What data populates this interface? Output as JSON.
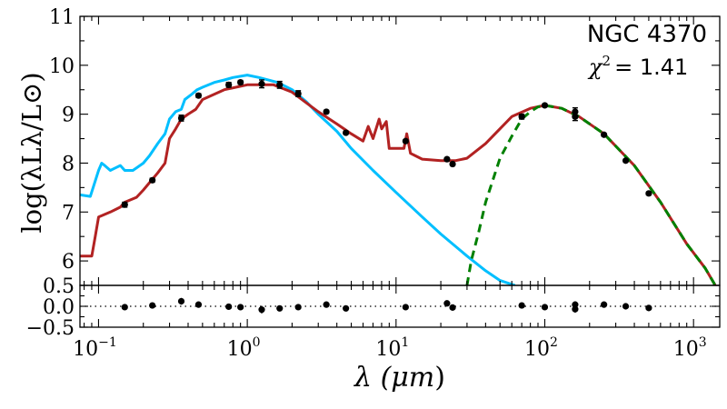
{
  "chart_data": [
    {
      "type": "line",
      "panel": "main",
      "annotation": "NGC 4370",
      "chi2_label": "χ",
      "chi2_exp": "2",
      "chi2_eq": "= 1.41",
      "xlabel_parts": [
        "λ (",
        "μm",
        ")"
      ],
      "ylabel": "log(λLλ/L⊙)",
      "xscale": "log",
      "xlim": [
        0.075,
        1500
      ],
      "ylim": [
        5.5,
        11
      ],
      "y_ticks": [
        {
          "v": 6,
          "t": "6"
        },
        {
          "v": 7,
          "t": "7"
        },
        {
          "v": 8,
          "t": "8"
        },
        {
          "v": 9,
          "t": "9"
        },
        {
          "v": 10,
          "t": "10"
        },
        {
          "v": 11,
          "t": "11"
        }
      ],
      "x_ticks": [
        {
          "v": 0.1,
          "base": "10",
          "exp": "−1"
        },
        {
          "v": 1,
          "base": "10",
          "exp": "0"
        },
        {
          "v": 10,
          "base": "10",
          "exp": "1"
        },
        {
          "v": 100,
          "base": "10",
          "exp": "2"
        },
        {
          "v": 1000,
          "base": "10",
          "exp": "3"
        }
      ],
      "series": [
        {
          "color": "#00BFFF",
          "style": "solid",
          "x": [
            0.075,
            0.088,
            0.1,
            0.105,
            0.11,
            0.12,
            0.14,
            0.15,
            0.17,
            0.18,
            0.2,
            0.22,
            0.25,
            0.28,
            0.3,
            0.33,
            0.36,
            0.38,
            0.42,
            0.46,
            0.5,
            0.6,
            0.7,
            0.8,
            1.0,
            1.2,
            1.6,
            2.0,
            2.5,
            3.0,
            4.0,
            5.0,
            7.0,
            10,
            15,
            20,
            30,
            40,
            50,
            63
          ],
          "y": [
            7.35,
            7.32,
            7.85,
            8.0,
            7.95,
            7.85,
            7.95,
            7.85,
            7.85,
            7.9,
            8.0,
            8.15,
            8.4,
            8.6,
            8.9,
            9.05,
            9.1,
            9.3,
            9.4,
            9.5,
            9.55,
            9.65,
            9.7,
            9.75,
            9.8,
            9.75,
            9.65,
            9.5,
            9.25,
            9.0,
            8.65,
            8.3,
            7.85,
            7.4,
            6.9,
            6.55,
            6.1,
            5.8,
            5.6,
            5.5
          ]
        },
        {
          "color": "#B22222",
          "style": "solid",
          "x": [
            0.075,
            0.09,
            0.095,
            0.1,
            0.12,
            0.14,
            0.15,
            0.18,
            0.2,
            0.22,
            0.25,
            0.28,
            0.3,
            0.33,
            0.36,
            0.4,
            0.45,
            0.5,
            0.7,
            1.0,
            1.5,
            2.0,
            3.0,
            4.0,
            5.0,
            6.0,
            6.5,
            7.0,
            7.7,
            8.0,
            8.6,
            9.0,
            11.3,
            11.8,
            12.5,
            13.5,
            15,
            20,
            25,
            30,
            40,
            60,
            80,
            100,
            130,
            170,
            250,
            400,
            600,
            900,
            1200,
            1400
          ],
          "y": [
            6.1,
            6.1,
            6.5,
            6.9,
            7.0,
            7.1,
            7.2,
            7.3,
            7.45,
            7.6,
            7.8,
            8.0,
            8.5,
            8.7,
            8.9,
            9.0,
            9.1,
            9.3,
            9.5,
            9.6,
            9.6,
            9.45,
            9.05,
            8.8,
            8.6,
            8.45,
            8.75,
            8.5,
            8.9,
            8.7,
            8.85,
            8.3,
            8.3,
            8.6,
            8.2,
            8.15,
            8.08,
            8.05,
            8.05,
            8.1,
            8.4,
            8.95,
            9.12,
            9.18,
            9.12,
            8.95,
            8.6,
            7.95,
            7.2,
            6.35,
            5.85,
            5.5
          ]
        },
        {
          "color": "#008000",
          "style": "dashed",
          "x": [
            30,
            32,
            36,
            40,
            50,
            60,
            70,
            80,
            90,
            100,
            130,
            170,
            250,
            400,
            600,
            900,
            1200,
            1400
          ],
          "y": [
            5.5,
            6.0,
            6.6,
            7.2,
            8.1,
            8.55,
            8.9,
            9.05,
            9.15,
            9.18,
            9.12,
            8.95,
            8.6,
            7.95,
            7.2,
            6.35,
            5.85,
            5.5
          ]
        }
      ],
      "points": {
        "color": "#000000",
        "x": [
          0.15,
          0.23,
          0.36,
          0.47,
          0.75,
          0.9,
          1.25,
          1.65,
          2.2,
          3.4,
          4.6,
          11.6,
          22,
          24,
          70,
          100,
          160,
          160,
          250,
          350,
          500
        ],
        "y": [
          7.15,
          7.65,
          8.92,
          9.38,
          9.6,
          9.65,
          9.62,
          9.6,
          9.42,
          9.05,
          8.62,
          8.45,
          8.08,
          7.98,
          8.95,
          9.18,
          9.05,
          8.95,
          8.58,
          8.05,
          7.38
        ],
        "yerr": [
          0.05,
          0.04,
          0.06,
          0.04,
          0.05,
          0.04,
          0.08,
          0.07,
          0.06,
          0.03,
          0.03,
          0.03,
          0.03,
          0.02,
          0.05,
          0.03,
          0.08,
          0.08,
          0.03,
          0.03,
          0.03
        ]
      }
    },
    {
      "type": "scatter",
      "panel": "residuals",
      "xscale": "log",
      "xlim": [
        0.075,
        1500
      ],
      "ylim": [
        -0.5,
        0.5
      ],
      "y_ticks": [
        {
          "v": 0.5,
          "t": "0.5"
        },
        {
          "v": 0.0,
          "t": "0.0"
        },
        {
          "v": -0.5,
          "t": "−0.5"
        }
      ],
      "reference_line": 0,
      "points": {
        "color": "#000000",
        "x": [
          0.15,
          0.23,
          0.36,
          0.47,
          0.75,
          0.9,
          1.25,
          1.65,
          2.2,
          3.4,
          4.6,
          11.6,
          22,
          24,
          70,
          100,
          160,
          160,
          250,
          350,
          500
        ],
        "y": [
          -0.02,
          0.02,
          0.12,
          0.04,
          -0.01,
          -0.02,
          -0.08,
          -0.05,
          -0.02,
          0.04,
          -0.05,
          -0.02,
          0.07,
          -0.03,
          0.02,
          -0.02,
          0.04,
          -0.07,
          0.04,
          0.0,
          -0.04
        ],
        "yerr": [
          0.05,
          0.04,
          0.08,
          0.04,
          0.05,
          0.04,
          0.09,
          0.07,
          0.06,
          0.03,
          0.03,
          0.03,
          0.03,
          0.02,
          0.05,
          0.03,
          0.08,
          0.08,
          0.03,
          0.03,
          0.03
        ]
      }
    }
  ]
}
